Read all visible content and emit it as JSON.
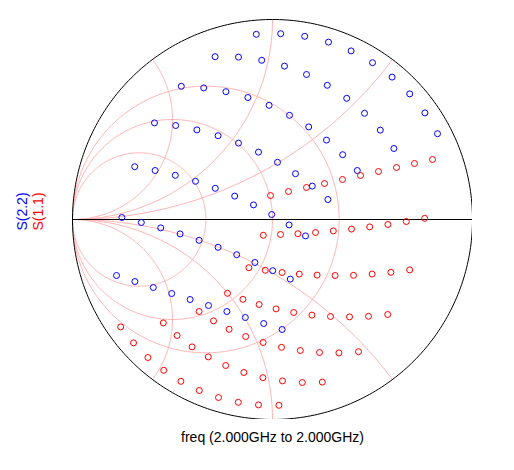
{
  "chart_data": {
    "type": "scatter",
    "caption": "freq (2.000GHz to 2.000GHz)",
    "xlim": [
      -1,
      1
    ],
    "ylim": [
      -1,
      1
    ],
    "tick_labels": false,
    "grid": true,
    "legend": "left",
    "series": [
      {
        "name": "S(2.2)",
        "color": "#0000ff",
        "marker": "circle",
        "x": [
          -0.78,
          -0.753,
          -0.689,
          -0.59,
          -0.456,
          -0.287,
          -0.081,
          -0.688,
          -0.656,
          -0.587,
          -0.484,
          -0.344,
          -0.17,
          0.041,
          -0.596,
          -0.559,
          -0.486,
          -0.378,
          -0.233,
          -0.054,
          0.161,
          -0.504,
          -0.462,
          -0.385,
          -0.272,
          -0.123,
          0.06,
          0.28,
          -0.412,
          -0.367,
          -0.286,
          -0.17,
          -0.017,
          0.17,
          0.393,
          -0.32,
          -0.272,
          -0.189,
          -0.07,
          0.085,
          0.274,
          0.5,
          -0.228,
          -0.179,
          -0.095,
          0.025,
          0.181,
          0.371,
          0.598,
          -0.136,
          -0.088,
          -0.004,
          0.115,
          0.27,
          0.46,
          0.686,
          -0.044,
          0.001,
          0.083,
          0.199,
          0.351,
          0.539,
          0.762,
          0.048,
          0.089,
          0.165,
          0.277,
          0.424,
          0.607,
          0.825
        ],
        "y": [
          -0.28,
          0.01,
          0.264,
          0.483,
          0.666,
          0.814,
          0.926,
          -0.31,
          -0.015,
          0.245,
          0.47,
          0.658,
          0.812,
          0.929,
          -0.34,
          -0.042,
          0.221,
          0.448,
          0.639,
          0.796,
          0.916,
          -0.37,
          -0.072,
          0.191,
          0.419,
          0.61,
          0.767,
          0.887,
          -0.4,
          -0.104,
          0.156,
          0.382,
          0.571,
          0.725,
          0.843,
          -0.43,
          -0.139,
          0.117,
          0.337,
          0.521,
          0.671,
          0.784,
          -0.46,
          -0.176,
          0.073,
          0.286,
          0.463,
          0.606,
          0.712,
          -0.49,
          -0.215,
          0.025,
          0.229,
          0.397,
          0.531,
          0.628,
          -0.52,
          -0.256,
          -0.027,
          0.167,
          0.324,
          0.447,
          0.533,
          -0.55,
          -0.298,
          -0.082,
          0.1,
          0.245,
          0.355,
          0.429
        ]
      },
      {
        "name": "S(1.1)",
        "color": "#ff0000",
        "marker": "circle",
        "x": [
          0.8,
          0.761,
          0.686,
          0.576,
          0.43,
          0.249,
          0.032,
          0.71,
          0.669,
          0.592,
          0.48,
          0.332,
          0.149,
          -0.07,
          0.62,
          0.577,
          0.498,
          0.385,
          0.235,
          0.05,
          -0.171,
          0.53,
          0.486,
          0.405,
          0.29,
          0.139,
          -0.048,
          -0.27,
          0.44,
          0.395,
          0.313,
          0.197,
          0.045,
          -0.143,
          -0.366,
          0.35,
          0.304,
          0.223,
          0.106,
          -0.047,
          -0.234,
          -0.458,
          0.26,
          0.215,
          0.134,
          0.018,
          -0.134,
          -0.321,
          -0.544,
          0.17,
          0.127,
          0.048,
          -0.067,
          -0.217,
          -0.402,
          -0.623,
          0.08,
          0.04,
          -0.036,
          -0.148,
          -0.295,
          -0.477,
          -0.695,
          -0.01,
          -0.046,
          -0.118,
          -0.225,
          -0.367,
          -0.546,
          -0.759
        ],
        "y": [
          0.3,
          0.006,
          -0.252,
          -0.475,
          -0.661,
          -0.813,
          -0.929,
          0.28,
          -0.01,
          -0.264,
          -0.484,
          -0.667,
          -0.815,
          -0.927,
          0.26,
          -0.025,
          -0.273,
          -0.487,
          -0.665,
          -0.807,
          -0.914,
          0.24,
          -0.037,
          -0.279,
          -0.485,
          -0.655,
          -0.791,
          -0.89,
          0.22,
          -0.048,
          -0.28,
          -0.478,
          -0.639,
          -0.765,
          -0.855,
          0.2,
          -0.057,
          -0.278,
          -0.465,
          -0.615,
          -0.73,
          -0.809,
          0.18,
          -0.065,
          -0.273,
          -0.447,
          -0.585,
          -0.687,
          -0.754,
          0.16,
          -0.071,
          -0.265,
          -0.425,
          -0.549,
          -0.637,
          -0.69,
          0.14,
          -0.075,
          -0.254,
          -0.399,
          -0.507,
          -0.58,
          -0.617,
          0.12,
          -0.079,
          -0.241,
          -0.369,
          -0.46,
          -0.517,
          -0.537
        ]
      }
    ]
  }
}
